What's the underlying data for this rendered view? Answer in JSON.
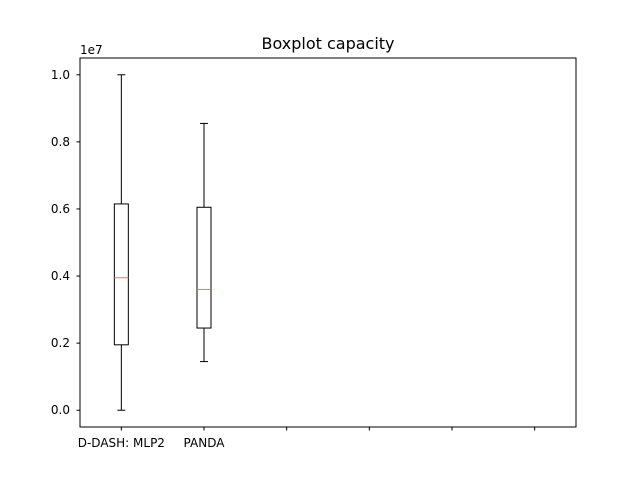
{
  "chart_data": {
    "type": "boxplot",
    "title": "Boxplot capacity",
    "xlabel": "",
    "ylabel": "",
    "y_offset_label": "1e7",
    "y_scale_factor": 10000000,
    "ylim": [
      -0.05,
      1.05
    ],
    "y_ticks": [
      0.0,
      0.2,
      0.4,
      0.6,
      0.8,
      1.0
    ],
    "y_tick_labels": [
      "0.0",
      "0.2",
      "0.4",
      "0.6",
      "0.8",
      "1.0"
    ],
    "x_slots": 6,
    "grid": false,
    "boxes": [
      {
        "category": "D-DASH: MLP2",
        "whisker_low": 0.0,
        "q1": 0.195,
        "median": 0.395,
        "q3": 0.615,
        "whisker_high": 1.0
      },
      {
        "category": "PANDA",
        "whisker_low": 0.145,
        "q1": 0.245,
        "median": 0.36,
        "q3": 0.605,
        "whisker_high": 0.855
      }
    ],
    "colors": {
      "box": "#000000",
      "median": "#ff7f0e",
      "whisker": "#000000"
    }
  }
}
